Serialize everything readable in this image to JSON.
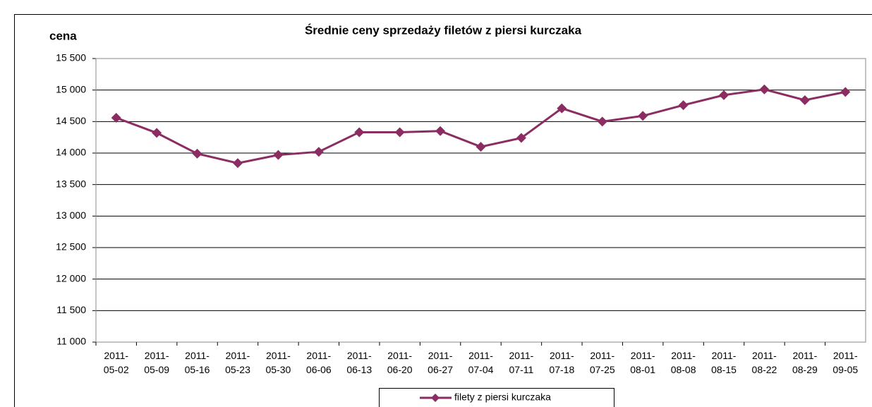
{
  "chart_data": {
    "type": "line",
    "title": "Średnie ceny sprzedaży filetów z piersi kurczaka",
    "y_label": "cena",
    "categories": [
      "2011-05-02",
      "2011-05-09",
      "2011-05-16",
      "2011-05-23",
      "2011-05-30",
      "2011-06-06",
      "2011-06-13",
      "2011-06-20",
      "2011-06-27",
      "2011-07-04",
      "2011-07-11",
      "2011-07-18",
      "2011-07-25",
      "2011-08-01",
      "2011-08-08",
      "2011-08-15",
      "2011-08-22",
      "2011-08-29",
      "2011-09-05"
    ],
    "series": [
      {
        "name": "filety z piersi kurczaka",
        "color": "#8b2d62",
        "values": [
          14560,
          14320,
          13990,
          13840,
          13970,
          14020,
          14330,
          14330,
          14350,
          14100,
          14240,
          14710,
          14500,
          14590,
          14760,
          14920,
          15010,
          14840,
          14970
        ]
      }
    ],
    "ylim": [
      11000,
      15500
    ],
    "yticks": [
      {
        "value": 11000,
        "label": "11 000"
      },
      {
        "value": 11500,
        "label": "11 500"
      },
      {
        "value": 12000,
        "label": "12 000"
      },
      {
        "value": 12500,
        "label": "12 500"
      },
      {
        "value": 13000,
        "label": "13 000"
      },
      {
        "value": 13500,
        "label": "13 500"
      },
      {
        "value": 14000,
        "label": "14 000"
      },
      {
        "value": 14500,
        "label": "14 500"
      },
      {
        "value": 15000,
        "label": "15 000"
      },
      {
        "value": 15500,
        "label": "15 500"
      }
    ],
    "grid": true,
    "legend": "bottom"
  }
}
